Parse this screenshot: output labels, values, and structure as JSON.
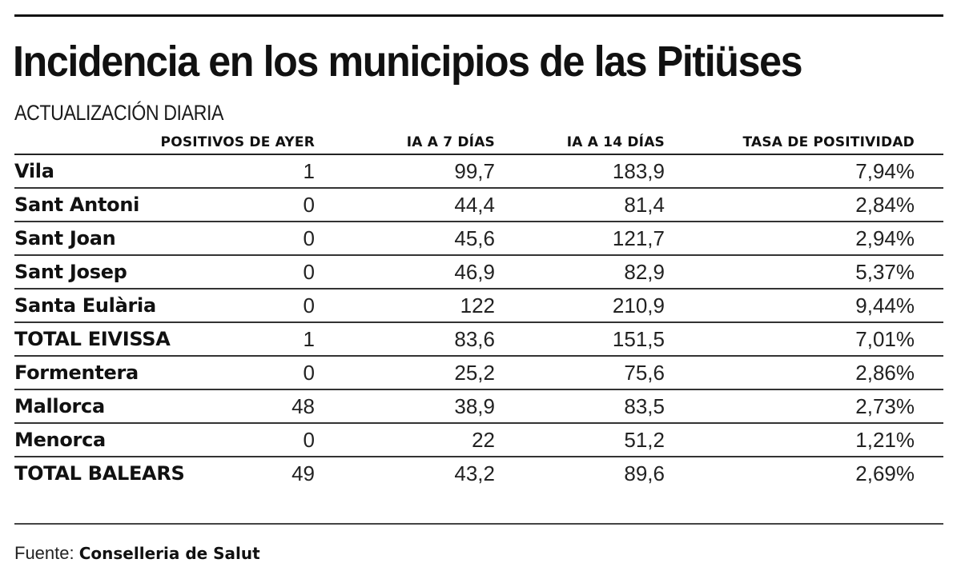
{
  "header": {
    "title": "Incidencia en los municipios de las Pitiüses",
    "subtitle": "ACTUALIZACIÓN DIARIA"
  },
  "table": {
    "columns": [
      "POSITIVOS DE AYER",
      "IA A 7 DÍAS",
      "IA A 14 DÍAS",
      "TASA DE POSITIVIDAD"
    ],
    "rows": [
      {
        "name": "Vila",
        "positivos": "1",
        "ia7": "99,7",
        "ia14": "183,9",
        "tasa": "7,94%"
      },
      {
        "name": "Sant Antoni",
        "positivos": "0",
        "ia7": "44,4",
        "ia14": "81,4",
        "tasa": "2,84%"
      },
      {
        "name": "Sant Joan",
        "positivos": "0",
        "ia7": "45,6",
        "ia14": "121,7",
        "tasa": "2,94%"
      },
      {
        "name": "Sant Josep",
        "positivos": "0",
        "ia7": "46,9",
        "ia14": "82,9",
        "tasa": "5,37%"
      },
      {
        "name": "Santa Eulària",
        "positivos": "0",
        "ia7": "122",
        "ia14": "210,9",
        "tasa": "9,44%"
      },
      {
        "name": "TOTAL EIVISSA",
        "positivos": "1",
        "ia7": "83,6",
        "ia14": "151,5",
        "tasa": "7,01%"
      },
      {
        "name": "Formentera",
        "positivos": "0",
        "ia7": "25,2",
        "ia14": "75,6",
        "tasa": "2,86%"
      },
      {
        "name": "Mallorca",
        "positivos": "48",
        "ia7": "38,9",
        "ia14": "83,5",
        "tasa": "2,73%"
      },
      {
        "name": "Menorca",
        "positivos": "0",
        "ia7": "22",
        "ia14": "51,2",
        "tasa": "1,21%"
      },
      {
        "name": "TOTAL BALEARS",
        "positivos": "49",
        "ia7": "43,2",
        "ia14": "89,6",
        "tasa": "2,69%"
      }
    ]
  },
  "footer": {
    "source_label": "Fuente:",
    "source_value": "Conselleria de Salut"
  },
  "chart_data": {
    "type": "table",
    "title": "Incidencia en los municipios de las Pitiüses",
    "subtitle": "ACTUALIZACIÓN DIARIA",
    "categories": [
      "Vila",
      "Sant Antoni",
      "Sant Joan",
      "Sant Josep",
      "Santa Eulària",
      "TOTAL EIVISSA",
      "Formentera",
      "Mallorca",
      "Menorca",
      "TOTAL BALEARS"
    ],
    "series": [
      {
        "name": "POSITIVOS DE AYER",
        "values": [
          1,
          0,
          0,
          0,
          0,
          1,
          0,
          48,
          0,
          49
        ]
      },
      {
        "name": "IA A 7 DÍAS",
        "values": [
          99.7,
          44.4,
          45.6,
          46.9,
          122,
          83.6,
          25.2,
          38.9,
          22,
          43.2
        ]
      },
      {
        "name": "IA A 14 DÍAS",
        "values": [
          183.9,
          81.4,
          121.7,
          82.9,
          210.9,
          151.5,
          75.6,
          83.5,
          51.2,
          89.6
        ]
      },
      {
        "name": "TASA DE POSITIVIDAD (%)",
        "values": [
          7.94,
          2.84,
          2.94,
          5.37,
          9.44,
          7.01,
          2.86,
          2.73,
          1.21,
          2.69
        ]
      }
    ],
    "source": "Fuente: Conselleria de Salut"
  }
}
